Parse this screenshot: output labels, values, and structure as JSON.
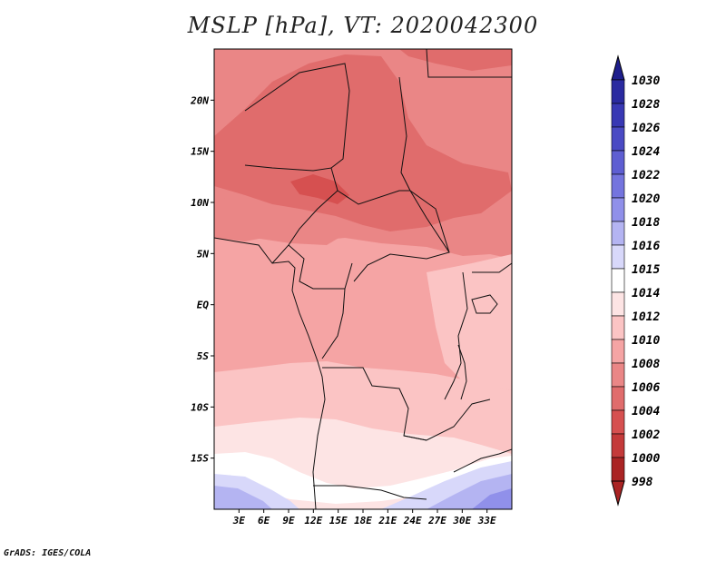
{
  "title": "MSLP [hPa], VT: 2020042300",
  "credit": "GrADS: IGES/COLA",
  "map": {
    "region": "Central Africa",
    "lon_range": [
      0,
      36
    ],
    "lat_range": [
      -20,
      25
    ],
    "y_ticks": [
      {
        "lat": 20,
        "label": "20N"
      },
      {
        "lat": 15,
        "label": "15N"
      },
      {
        "lat": 10,
        "label": "10N"
      },
      {
        "lat": 5,
        "label": "5N"
      },
      {
        "lat": 0,
        "label": "EQ"
      },
      {
        "lat": -5,
        "label": "5S"
      },
      {
        "lat": -10,
        "label": "10S"
      },
      {
        "lat": -15,
        "label": "15S"
      }
    ],
    "x_ticks": [
      {
        "lon": 3,
        "label": "3E"
      },
      {
        "lon": 6,
        "label": "6E"
      },
      {
        "lon": 9,
        "label": "9E"
      },
      {
        "lon": 12,
        "label": "12E"
      },
      {
        "lon": 15,
        "label": "15E"
      },
      {
        "lon": 18,
        "label": "18E"
      },
      {
        "lon": 21,
        "label": "21E"
      },
      {
        "lon": 24,
        "label": "24E"
      },
      {
        "lon": 27,
        "label": "27E"
      },
      {
        "lon": 30,
        "label": "30E"
      },
      {
        "lon": 33,
        "label": "33E"
      }
    ]
  },
  "colorbar": {
    "levels": [
      {
        "label": "1030",
        "color": "#1e1e8c"
      },
      {
        "label": "1028",
        "color": "#2a2aa0"
      },
      {
        "label": "1026",
        "color": "#3838b4"
      },
      {
        "label": "1024",
        "color": "#4a4ac4"
      },
      {
        "label": "1022",
        "color": "#5e5ed2"
      },
      {
        "label": "1020",
        "color": "#7474de"
      },
      {
        "label": "1018",
        "color": "#9090ea"
      },
      {
        "label": "1016",
        "color": "#b4b4f2"
      },
      {
        "label": "1015",
        "color": "#d8d8fa"
      },
      {
        "label": "1014",
        "color": "#ffffff"
      },
      {
        "label": "1012",
        "color": "#fde4e4"
      },
      {
        "label": "1010",
        "color": "#fbc4c4"
      },
      {
        "label": "1008",
        "color": "#f5a4a4"
      },
      {
        "label": "1006",
        "color": "#ea8686"
      },
      {
        "label": "1004",
        "color": "#e06c6c"
      },
      {
        "label": "1002",
        "color": "#d65050"
      },
      {
        "label": "1000",
        "color": "#c43a3a"
      },
      {
        "label": "998",
        "color": "#aa2424"
      }
    ]
  }
}
